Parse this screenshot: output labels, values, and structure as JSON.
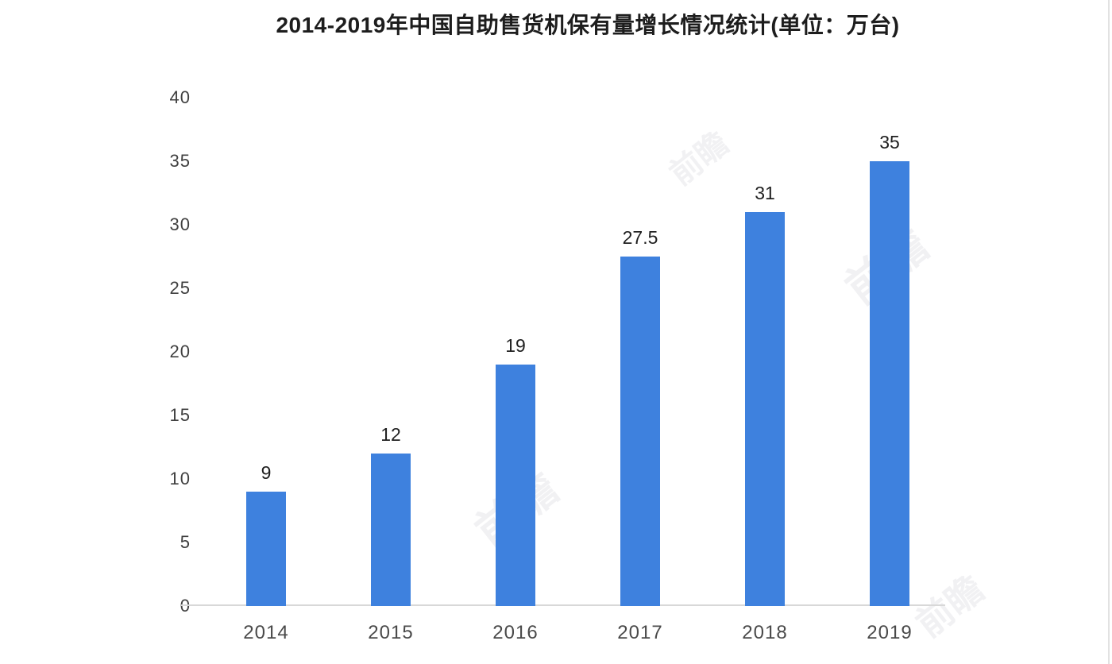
{
  "chart_data": {
    "type": "bar",
    "title": "2014-2019年中国自助售货机保有量增长情况统计(单位：万台)",
    "categories": [
      "2014",
      "2015",
      "2016",
      "2017",
      "2018",
      "2019"
    ],
    "values": [
      9,
      12,
      19,
      27.5,
      31,
      35
    ],
    "value_labels": [
      "9",
      "12",
      "19",
      "27.5",
      "31",
      "35"
    ],
    "xlabel": "",
    "ylabel": "",
    "ylim": [
      0,
      40
    ],
    "yticks": [
      0,
      5,
      10,
      15,
      20,
      25,
      30,
      35,
      40
    ],
    "grid": false,
    "legend": false,
    "bar_color": "#3e81de",
    "axis_line_color": "#d8d8d8",
    "title_color": "#1d1d1d",
    "tick_label_color": "#404040",
    "category_label_color": "#4a4a4a",
    "value_label_color": "#1f1f1f"
  },
  "watermark": {
    "text": "前瞻"
  }
}
